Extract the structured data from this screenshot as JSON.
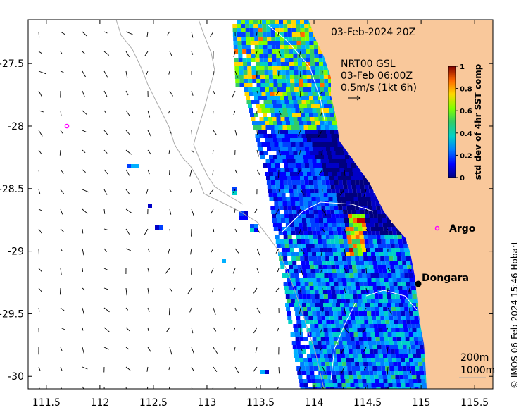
{
  "map": {
    "date_label": "03-Feb-2024 20Z",
    "current_info": {
      "line1": "NRT00 GSL",
      "line2": "03-Feb 06:00Z",
      "line3": "0.5m/s (1kt 6h)"
    },
    "places": [
      {
        "name": "Argo",
        "lon": 115.12,
        "lat": -28.77
      },
      {
        "name": "Dongara",
        "lon": 114.93,
        "lat": -29.25
      }
    ],
    "argo_float_offshore": {
      "lon": 111.67,
      "lat": -27.97
    },
    "depth_legend": [
      "200m",
      "1000m"
    ],
    "x_ticks": [
      {
        "value": 111.5,
        "label": "111.5"
      },
      {
        "value": 112,
        "label": "112"
      },
      {
        "value": 112.5,
        "label": "112.5"
      },
      {
        "value": 113,
        "label": "113"
      },
      {
        "value": 113.5,
        "label": "113.5"
      },
      {
        "value": 114,
        "label": "114"
      },
      {
        "value": 114.5,
        "label": "114.5"
      },
      {
        "value": 115,
        "label": "115"
      },
      {
        "value": 115.5,
        "label": "115.5"
      }
    ],
    "y_ticks": [
      {
        "value": -27.5,
        "label": "-27.5"
      },
      {
        "value": -28,
        "label": "-28"
      },
      {
        "value": -28.5,
        "label": "-28.5"
      },
      {
        "value": -29,
        "label": "-29"
      },
      {
        "value": -29.5,
        "label": "-29.5"
      },
      {
        "value": -30,
        "label": "-30"
      }
    ],
    "x_range": [
      111.33,
      115.67
    ],
    "y_range": [
      -27.15,
      -30.1
    ],
    "colorbar": {
      "title": "std dev of 4hr SST comp",
      "ticks": [
        {
          "value": 0,
          "label": "0"
        },
        {
          "value": 0.2,
          "label": "0.2"
        },
        {
          "value": 0.4,
          "label": "0.4"
        },
        {
          "value": 0.6,
          "label": "0.6"
        },
        {
          "value": 0.8,
          "label": "0.8"
        },
        {
          "value": 1,
          "label": "1"
        }
      ],
      "range": [
        0,
        1
      ]
    },
    "credit": "© IMOS 06-Feb-2024 15:46 Hobart",
    "colors": {
      "land": "#f9c89b",
      "argo_marker": "#ff00ff",
      "contour": "#aaaaaa",
      "isobath": "#ffffff"
    }
  }
}
